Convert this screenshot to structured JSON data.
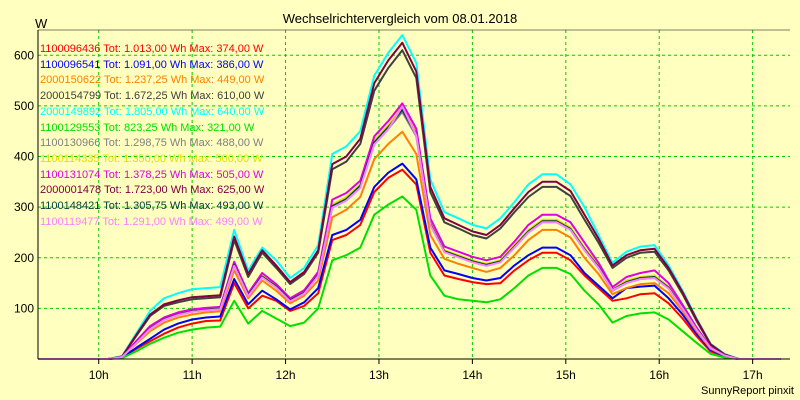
{
  "chart_data": {
    "type": "line",
    "title": "Wechselrichtervergleich vom 08.01.2018",
    "ylabel": "W",
    "credit": "SunnyReport pinxit",
    "grid": true,
    "background": "#ffffc0",
    "grid_color": "#00cc00",
    "ylim": [
      0,
      650
    ],
    "yticks": [
      100,
      200,
      300,
      400,
      500,
      600
    ],
    "xlim": [
      9.35,
      17.4
    ],
    "xticks": [
      10,
      11,
      12,
      13,
      14,
      15,
      16,
      17
    ],
    "xtick_labels": [
      "10h",
      "11h",
      "12h",
      "13h",
      "14h",
      "15h",
      "16h",
      "17h"
    ],
    "x": [
      9.35,
      9.5,
      9.65,
      9.8,
      9.95,
      10.1,
      10.25,
      10.4,
      10.55,
      10.7,
      10.85,
      11.0,
      11.15,
      11.3,
      11.45,
      11.6,
      11.75,
      11.9,
      12.05,
      12.2,
      12.35,
      12.5,
      12.65,
      12.8,
      12.95,
      13.1,
      13.25,
      13.4,
      13.55,
      13.7,
      13.85,
      14.0,
      14.15,
      14.3,
      14.45,
      14.6,
      14.75,
      14.9,
      15.05,
      15.2,
      15.35,
      15.5,
      15.65,
      15.8,
      15.95,
      16.1,
      16.25,
      16.4,
      16.55,
      16.7,
      16.85,
      17.0,
      17.15,
      17.3
    ],
    "series": [
      {
        "name": "1100096436 Tot: 1.013,00 Wh Max: 374,00 W",
        "color": "#ff0000",
        "values": [
          0,
          0,
          0,
          0,
          0,
          0,
          3,
          20,
          35,
          50,
          62,
          70,
          75,
          76,
          150,
          100,
          125,
          115,
          95,
          105,
          130,
          235,
          245,
          265,
          330,
          358,
          374,
          345,
          210,
          165,
          158,
          152,
          148,
          150,
          175,
          195,
          210,
          210,
          195,
          165,
          140,
          115,
          120,
          128,
          130,
          110,
          80,
          45,
          15,
          5,
          0,
          0,
          0,
          0
        ]
      },
      {
        "name": "1100096541 Tot: 1.091,00 Wh Max: 386,00 W",
        "color": "#0000ff",
        "values": [
          0,
          0,
          0,
          0,
          0,
          0,
          3,
          22,
          40,
          58,
          70,
          78,
          82,
          84,
          158,
          108,
          135,
          118,
          98,
          112,
          140,
          245,
          255,
          275,
          340,
          368,
          386,
          355,
          220,
          175,
          168,
          160,
          155,
          160,
          185,
          205,
          220,
          220,
          205,
          170,
          145,
          120,
          140,
          143,
          145,
          120,
          88,
          50,
          18,
          6,
          0,
          0,
          0,
          0
        ]
      },
      {
        "name": "2000150622 Tot: 1.237,25 Wh Max: 449,00 W",
        "color": "#ff8000",
        "values": [
          0,
          0,
          0,
          0,
          0,
          0,
          4,
          30,
          55,
          72,
          82,
          88,
          92,
          94,
          175,
          120,
          155,
          135,
          110,
          125,
          155,
          280,
          295,
          320,
          395,
          425,
          449,
          405,
          245,
          198,
          188,
          180,
          172,
          180,
          205,
          235,
          255,
          255,
          240,
          200,
          168,
          128,
          140,
          148,
          150,
          130,
          95,
          55,
          20,
          7,
          0,
          0,
          0,
          0
        ]
      },
      {
        "name": "2000154799 Tot: 1.672,25 Wh Max: 610,00 W",
        "color": "#404040",
        "values": [
          0,
          0,
          0,
          0,
          0,
          0,
          5,
          45,
          85,
          105,
          112,
          118,
          120,
          122,
          235,
          162,
          210,
          180,
          148,
          168,
          210,
          375,
          390,
          425,
          530,
          575,
          610,
          555,
          330,
          270,
          258,
          245,
          238,
          258,
          290,
          320,
          340,
          340,
          322,
          275,
          230,
          180,
          200,
          210,
          212,
          175,
          128,
          75,
          28,
          9,
          0,
          0,
          0,
          0
        ]
      },
      {
        "name": "2000149892 Tot: 1.805,00 Wh Max: 640,00 W",
        "color": "#00ffff",
        "values": [
          0,
          0,
          0,
          0,
          0,
          0,
          6,
          50,
          95,
          120,
          130,
          138,
          140,
          142,
          255,
          175,
          220,
          195,
          160,
          180,
          225,
          405,
          420,
          450,
          560,
          605,
          640,
          585,
          355,
          290,
          278,
          265,
          258,
          278,
          310,
          345,
          365,
          365,
          345,
          300,
          245,
          190,
          212,
          222,
          225,
          185,
          135,
          80,
          30,
          10,
          0,
          0,
          0,
          0
        ]
      },
      {
        "name": "1100129553 Tot: 823,25 Wh Max: 321,00 W",
        "color": "#00e000",
        "values": [
          0,
          0,
          0,
          0,
          0,
          0,
          2,
          15,
          30,
          42,
          52,
          58,
          62,
          64,
          115,
          70,
          95,
          80,
          65,
          72,
          100,
          195,
          205,
          220,
          285,
          305,
          321,
          295,
          165,
          125,
          118,
          115,
          112,
          118,
          140,
          165,
          180,
          180,
          168,
          135,
          108,
          72,
          85,
          90,
          92,
          78,
          55,
          32,
          10,
          3,
          0,
          0,
          0,
          0
        ]
      },
      {
        "name": "1100130966 Tot: 1.298,75 Wh Max: 488,00 W",
        "color": "#808080",
        "values": [
          0,
          0,
          0,
          0,
          0,
          0,
          4,
          32,
          60,
          78,
          88,
          94,
          97,
          99,
          185,
          125,
          162,
          142,
          115,
          130,
          165,
          300,
          315,
          340,
          425,
          455,
          488,
          440,
          265,
          212,
          202,
          192,
          185,
          192,
          220,
          250,
          270,
          270,
          255,
          215,
          180,
          135,
          150,
          158,
          160,
          140,
          100,
          58,
          22,
          7,
          0,
          0,
          0,
          0
        ]
      },
      {
        "name": "1100114335 Tot: 1.350,00 Wh Max: 500,00 W",
        "color": "#e0e000",
        "values": [
          0,
          0,
          0,
          0,
          0,
          0,
          4,
          33,
          62,
          80,
          90,
          96,
          99,
          101,
          188,
          128,
          165,
          145,
          118,
          133,
          168,
          305,
          320,
          345,
          432,
          462,
          500,
          448,
          270,
          215,
          205,
          195,
          188,
          195,
          225,
          255,
          275,
          275,
          260,
          220,
          185,
          138,
          155,
          162,
          165,
          143,
          102,
          60,
          22,
          7,
          0,
          0,
          0,
          0
        ]
      },
      {
        "name": "1100131074 Tot: 1.378,25 Wh Max: 505,00 W",
        "color": "#e000e0",
        "values": [
          0,
          0,
          0,
          0,
          0,
          0,
          4,
          35,
          65,
          82,
          92,
          98,
          101,
          103,
          192,
          130,
          170,
          148,
          120,
          136,
          172,
          315,
          328,
          352,
          440,
          470,
          505,
          455,
          278,
          222,
          212,
          202,
          195,
          202,
          232,
          265,
          285,
          285,
          270,
          230,
          190,
          142,
          162,
          170,
          175,
          150,
          107,
          62,
          23,
          8,
          0,
          0,
          0,
          0
        ]
      },
      {
        "name": "2000001478 Tot: 1.723,00 Wh Max: 625,00 W",
        "color": "#800040",
        "values": [
          0,
          0,
          0,
          0,
          0,
          0,
          5,
          47,
          88,
          108,
          116,
          122,
          124,
          126,
          242,
          168,
          215,
          185,
          152,
          172,
          215,
          385,
          400,
          435,
          545,
          590,
          625,
          568,
          340,
          278,
          265,
          252,
          245,
          265,
          298,
          330,
          350,
          350,
          332,
          285,
          238,
          185,
          205,
          215,
          218,
          180,
          132,
          78,
          29,
          9,
          0,
          0,
          0,
          0
        ]
      },
      {
        "name": "1100148421 Tot: 1.305,75 Wh Max: 493,00 W",
        "color": "#004040",
        "values": [
          0,
          0,
          0,
          0,
          0,
          0,
          4,
          32,
          60,
          78,
          88,
          94,
          97,
          99,
          186,
          126,
          163,
          143,
          116,
          131,
          166,
          302,
          316,
          342,
          428,
          458,
          493,
          444,
          267,
          213,
          203,
          193,
          186,
          193,
          222,
          252,
          272,
          272,
          257,
          217,
          182,
          137,
          152,
          160,
          162,
          141,
          101,
          59,
          22,
          7,
          0,
          0,
          0,
          0
        ]
      },
      {
        "name": "1100119477 Tot: 1.291,00 Wh Max: 499,00 W",
        "color": "#ff80ff",
        "values": [
          0,
          0,
          0,
          0,
          0,
          0,
          4,
          31,
          59,
          77,
          87,
          93,
          96,
          98,
          184,
          124,
          161,
          141,
          114,
          129,
          164,
          299,
          313,
          338,
          424,
          454,
          499,
          442,
          265,
          211,
          201,
          191,
          184,
          191,
          220,
          250,
          270,
          270,
          255,
          215,
          180,
          136,
          150,
          158,
          160,
          139,
          100,
          58,
          22,
          7,
          0,
          0,
          0,
          0
        ]
      }
    ]
  }
}
